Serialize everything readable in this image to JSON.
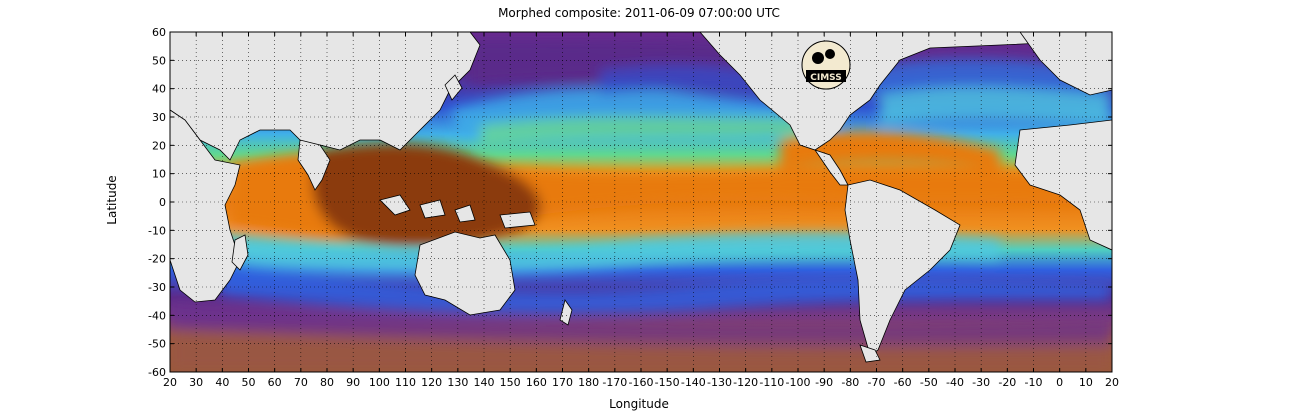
{
  "title": "Morphed composite: 2011-06-09 07:00:00 UTC",
  "xlabel": "Longitude",
  "ylabel": "Latitude",
  "x_ticks": [
    "20",
    "30",
    "40",
    "50",
    "60",
    "70",
    "80",
    "90",
    "100",
    "110",
    "120",
    "130",
    "140",
    "150",
    "160",
    "170",
    "180",
    "-170",
    "-160",
    "-150",
    "-140",
    "-130",
    "-120",
    "-110",
    "-100",
    "-90",
    "-80",
    "-70",
    "-60",
    "-50",
    "-40",
    "-30",
    "-20",
    "-10",
    "0",
    "10",
    "20"
  ],
  "y_ticks": [
    "60",
    "50",
    "40",
    "30",
    "20",
    "10",
    "0",
    "-10",
    "-20",
    "-30",
    "-40",
    "-50",
    "-60"
  ],
  "logo_text": "CIMSS",
  "colors": {
    "land": "#e6e6e6",
    "dry": "#5a2a8a",
    "moist_orange": "#e87a10",
    "very_moist": "#8b3a0a",
    "south_brown": "#a05a3a",
    "blue": "#3070e0",
    "cyan": "#40c8e8",
    "green": "#60e080"
  },
  "chart_data": {
    "type": "heatmap",
    "title": "Morphed composite: 2011-06-09 07:00:00 UTC",
    "xlabel": "Longitude",
    "ylabel": "Latitude",
    "xlim": [
      20,
      380
    ],
    "ylim": [
      -60,
      60
    ],
    "grid": true
  }
}
